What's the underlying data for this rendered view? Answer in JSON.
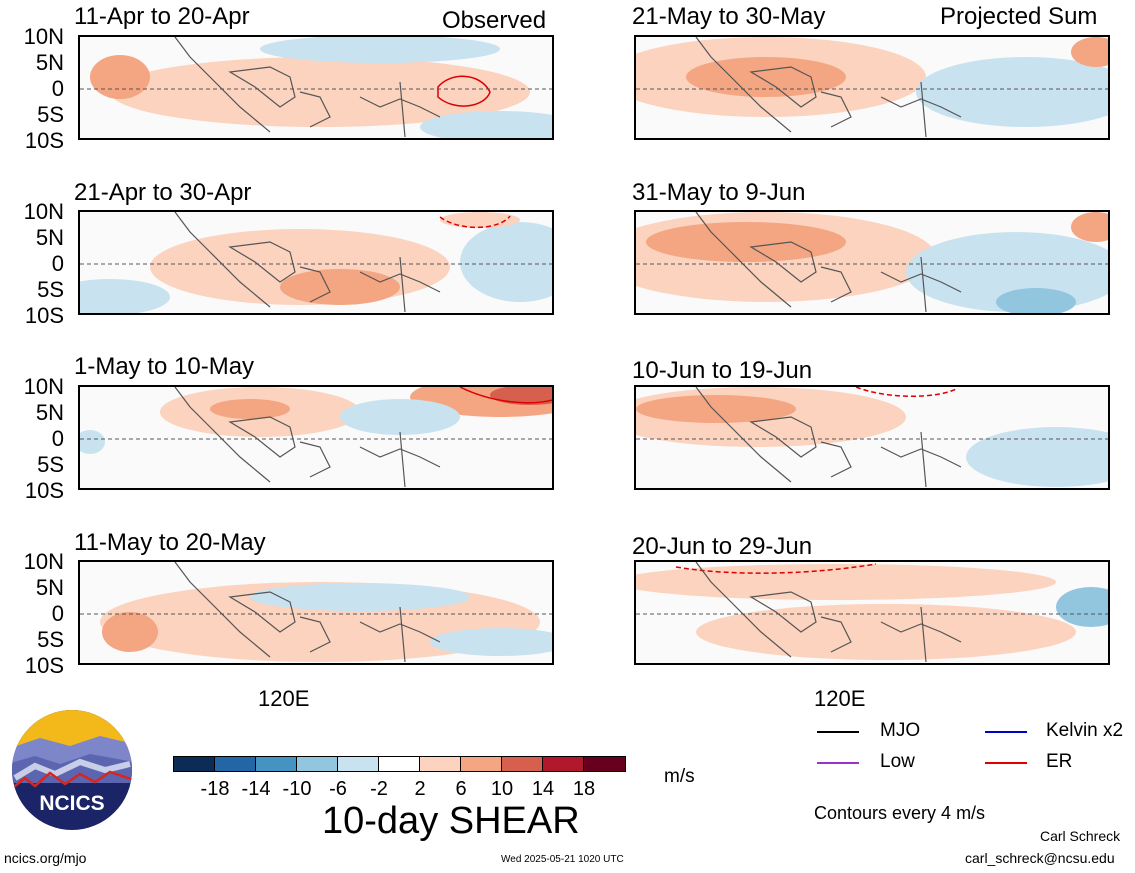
{
  "header": {
    "left_corner_label": "Observed",
    "right_corner_label": "Projected Sum"
  },
  "panels": [
    {
      "title": "11-Apr to 20-Apr"
    },
    {
      "title": "21-Apr to 30-Apr"
    },
    {
      "title": "1-May to 10-May"
    },
    {
      "title": "11-May to 20-May"
    },
    {
      "title": "21-May to 30-May"
    },
    {
      "title": "31-May to 9-Jun"
    },
    {
      "title": "10-Jun to 19-Jun"
    },
    {
      "title": "20-Jun to 29-Jun"
    }
  ],
  "lat_labels": [
    "10N",
    "5N",
    "0",
    "5S",
    "10S"
  ],
  "lon_label": "120E",
  "colorbar": {
    "labels": [
      "-18",
      "-14",
      "-10",
      "-6",
      "-2",
      "2",
      "6",
      "10",
      "14",
      "18"
    ],
    "colors": [
      "#0b2c57",
      "#2366a8",
      "#4393c3",
      "#92c5de",
      "#c9e2ef",
      "#ffffff",
      "#fbd3bf",
      "#f4a582",
      "#d6604d",
      "#b2182b",
      "#67001f"
    ],
    "units": "m/s",
    "title": "10-day SHEAR"
  },
  "legend": {
    "items": [
      {
        "label": "MJO",
        "color": "#000000"
      },
      {
        "label": "Kelvin x2",
        "color": "#0000cc"
      },
      {
        "label": "Low",
        "color": "#9933cc"
      },
      {
        "label": "ER",
        "color": "#dd0000"
      }
    ],
    "note": "Contours every 4 m/s"
  },
  "logo": {
    "text": "NCICS"
  },
  "footer": {
    "url": "ncics.org/mjo",
    "timestamp": "Wed 2025-05-21 1020 UTC",
    "author": "Carl Schreck",
    "email": "carl_schreck@ncsu.edu"
  }
}
